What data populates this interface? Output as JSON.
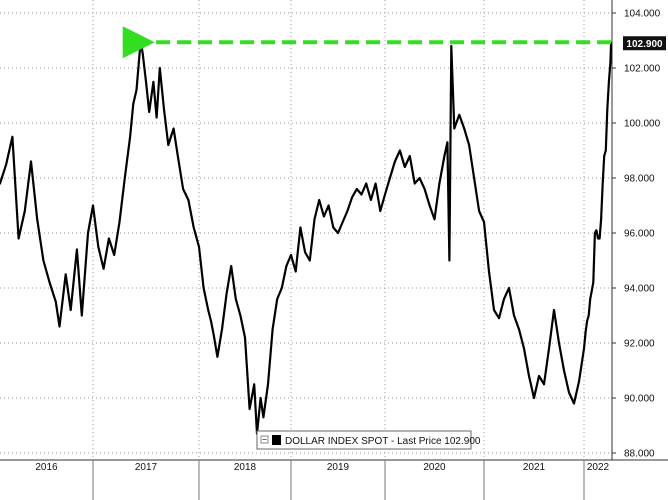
{
  "chart_data": {
    "type": "line",
    "title": "",
    "xlabel": "",
    "ylabel": "",
    "ylim": [
      87.5,
      104.3
    ],
    "y_axis_position": "right",
    "y_ticks": [
      88,
      90,
      92,
      94,
      96,
      98,
      100,
      102,
      104
    ],
    "y_tick_labels": [
      "88.000",
      "90.000",
      "92.000",
      "94.000",
      "96.000",
      "98.000",
      "100.000",
      "102.000",
      "104.000"
    ],
    "x_ticks": [
      2016,
      2017,
      2018,
      2019,
      2020,
      2021,
      2022
    ],
    "x_tick_labels": [
      "2016",
      "2017",
      "2018",
      "2019",
      "2020",
      "2021",
      "2022"
    ],
    "x_range": [
      2015.75,
      2022.4
    ],
    "grid": "dotted",
    "legend": {
      "placement": "bottom-center",
      "entries": [
        {
          "label": "DOLLAR INDEX SPOT - Last Price 102.900",
          "color": "#000000"
        }
      ]
    },
    "last_value_label": "102.900",
    "series": [
      {
        "name": "DOLLAR INDEX SPOT",
        "color": "#000000",
        "points": [
          [
            2015.75,
            97.8
          ],
          [
            2015.8,
            98.5
          ],
          [
            2015.85,
            99.5
          ],
          [
            2015.9,
            95.8
          ],
          [
            2015.95,
            96.8
          ],
          [
            2016.0,
            98.6
          ],
          [
            2016.05,
            96.5
          ],
          [
            2016.1,
            95.0
          ],
          [
            2016.15,
            94.2
          ],
          [
            2016.2,
            93.5
          ],
          [
            2016.23,
            92.6
          ],
          [
            2016.28,
            94.5
          ],
          [
            2016.32,
            93.2
          ],
          [
            2016.37,
            95.4
          ],
          [
            2016.41,
            93.0
          ],
          [
            2016.46,
            96.0
          ],
          [
            2016.5,
            97.0
          ],
          [
            2016.55,
            95.5
          ],
          [
            2016.6,
            94.7
          ],
          [
            2016.65,
            95.8
          ],
          [
            2016.7,
            95.2
          ],
          [
            2016.75,
            96.4
          ],
          [
            2016.8,
            98.0
          ],
          [
            2016.85,
            99.5
          ],
          [
            2016.88,
            100.7
          ],
          [
            2016.91,
            101.2
          ],
          [
            2016.95,
            103.0
          ],
          [
            2016.97,
            102.5
          ],
          [
            2017.0,
            101.5
          ],
          [
            2017.03,
            100.4
          ],
          [
            2017.07,
            101.5
          ],
          [
            2017.1,
            100.2
          ],
          [
            2017.13,
            102.0
          ],
          [
            2017.17,
            100.5
          ],
          [
            2017.21,
            99.2
          ],
          [
            2017.26,
            99.8
          ],
          [
            2017.3,
            98.8
          ],
          [
            2017.35,
            97.6
          ],
          [
            2017.4,
            97.2
          ],
          [
            2017.45,
            96.2
          ],
          [
            2017.5,
            95.5
          ],
          [
            2017.55,
            94.0
          ],
          [
            2017.6,
            93.2
          ],
          [
            2017.63,
            92.8
          ],
          [
            2017.66,
            92.3
          ],
          [
            2017.7,
            91.5
          ],
          [
            2017.75,
            92.5
          ],
          [
            2017.8,
            93.8
          ],
          [
            2017.85,
            94.8
          ],
          [
            2017.9,
            93.6
          ],
          [
            2017.95,
            93.0
          ],
          [
            2018.0,
            92.2
          ],
          [
            2018.05,
            89.6
          ],
          [
            2018.1,
            90.5
          ],
          [
            2018.13,
            88.7
          ],
          [
            2018.17,
            90.0
          ],
          [
            2018.2,
            89.3
          ],
          [
            2018.25,
            90.5
          ],
          [
            2018.3,
            92.5
          ],
          [
            2018.35,
            93.6
          ],
          [
            2018.4,
            94.0
          ],
          [
            2018.45,
            94.8
          ],
          [
            2018.5,
            95.2
          ],
          [
            2018.55,
            94.6
          ],
          [
            2018.6,
            96.2
          ],
          [
            2018.65,
            95.3
          ],
          [
            2018.7,
            95.0
          ],
          [
            2018.75,
            96.5
          ],
          [
            2018.8,
            97.2
          ],
          [
            2018.85,
            96.6
          ],
          [
            2018.9,
            97.0
          ],
          [
            2018.95,
            96.2
          ],
          [
            2019.0,
            96.0
          ],
          [
            2019.05,
            96.4
          ],
          [
            2019.1,
            96.8
          ],
          [
            2019.15,
            97.3
          ],
          [
            2019.2,
            97.6
          ],
          [
            2019.25,
            97.4
          ],
          [
            2019.3,
            97.8
          ],
          [
            2019.35,
            97.2
          ],
          [
            2019.4,
            97.8
          ],
          [
            2019.45,
            96.8
          ],
          [
            2019.5,
            97.4
          ],
          [
            2019.55,
            98.0
          ],
          [
            2019.6,
            98.6
          ],
          [
            2019.65,
            99.0
          ],
          [
            2019.7,
            98.4
          ],
          [
            2019.75,
            98.8
          ],
          [
            2019.8,
            97.8
          ],
          [
            2019.85,
            98.0
          ],
          [
            2019.9,
            97.6
          ],
          [
            2019.95,
            97.0
          ],
          [
            2020.0,
            96.5
          ],
          [
            2020.05,
            97.8
          ],
          [
            2020.1,
            98.8
          ],
          [
            2020.13,
            99.3
          ],
          [
            2020.15,
            95.0
          ],
          [
            2020.17,
            102.8
          ],
          [
            2020.2,
            99.8
          ],
          [
            2020.25,
            100.3
          ],
          [
            2020.3,
            99.8
          ],
          [
            2020.35,
            99.2
          ],
          [
            2020.4,
            98.0
          ],
          [
            2020.45,
            96.8
          ],
          [
            2020.5,
            96.4
          ],
          [
            2020.55,
            94.6
          ],
          [
            2020.6,
            93.2
          ],
          [
            2020.65,
            92.9
          ],
          [
            2020.7,
            93.6
          ],
          [
            2020.75,
            94.0
          ],
          [
            2020.8,
            93.0
          ],
          [
            2020.85,
            92.5
          ],
          [
            2020.9,
            91.8
          ],
          [
            2020.95,
            90.8
          ],
          [
            2021.0,
            90.0
          ],
          [
            2021.05,
            90.8
          ],
          [
            2021.1,
            90.5
          ],
          [
            2021.15,
            91.8
          ],
          [
            2021.2,
            93.2
          ],
          [
            2021.25,
            92.0
          ],
          [
            2021.3,
            91.0
          ],
          [
            2021.35,
            90.2
          ],
          [
            2021.4,
            89.8
          ],
          [
            2021.45,
            90.6
          ],
          [
            2021.5,
            91.8
          ],
          [
            2021.55,
            92.4
          ],
          [
            2021.6,
            92.8
          ],
          [
            2021.65,
            93.0
          ],
          [
            2021.7,
            93.6
          ],
          [
            2021.75,
            93.9
          ],
          [
            2021.8,
            94.2
          ],
          [
            2021.85,
            96.0
          ],
          [
            2021.9,
            96.1
          ],
          [
            2021.95,
            95.8
          ],
          [
            2022.0,
            95.8
          ],
          [
            2022.05,
            96.5
          ],
          [
            2022.1,
            97.8
          ],
          [
            2022.15,
            98.8
          ],
          [
            2022.2,
            99.0
          ],
          [
            2022.25,
            100.5
          ],
          [
            2022.3,
            101.5
          ],
          [
            2022.35,
            102.2
          ],
          [
            2022.37,
            102.9
          ]
        ]
      }
    ],
    "annotations": [
      {
        "type": "dashed-arrow",
        "from": [
          2022.37,
          102.9
        ],
        "to": [
          2016.95,
          102.9
        ],
        "color": "#33dd22"
      }
    ]
  }
}
